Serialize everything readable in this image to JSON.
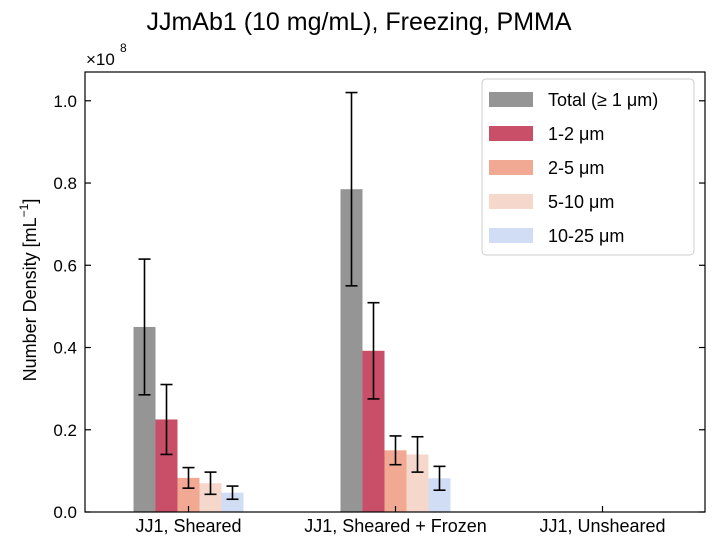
{
  "chart_data": {
    "type": "bar",
    "title": "JJmAb1 (10 mg/mL), Freezing, PMMA",
    "ylabel_main": "Number Density [mL",
    "ylabel_sup": "−1",
    "ylabel_close": "]",
    "xlabel": "",
    "y_multiplier": "×10",
    "y_multiplier_exp": "8",
    "ylim": [
      0,
      1.07
    ],
    "y_ticks": [
      0.0,
      0.2,
      0.4,
      0.6,
      0.8,
      1.0
    ],
    "y_tick_labels": [
      "0.0",
      "0.2",
      "0.4",
      "0.6",
      "0.8",
      "1.0"
    ],
    "categories": [
      "JJ1, Sheared",
      "JJ1, Sheared + Frozen",
      "JJ1, Unsheared"
    ],
    "series": [
      {
        "name": "Total (≥  1 μm)",
        "color": "#959595",
        "values": [
          0.45,
          0.785,
          0.001
        ],
        "err": [
          0.165,
          0.235,
          0.0
        ]
      },
      {
        "name": "1-2 μm",
        "color": "#c94e68",
        "values": [
          0.225,
          0.392,
          0.001
        ],
        "err": [
          0.085,
          0.117,
          0.0
        ]
      },
      {
        "name": "2-5 μm",
        "color": "#f2a994",
        "values": [
          0.083,
          0.15,
          0.001
        ],
        "err": [
          0.025,
          0.035,
          0.0
        ]
      },
      {
        "name": "5-10 μm",
        "color": "#f6d7cb",
        "values": [
          0.07,
          0.14,
          0.001
        ],
        "err": [
          0.027,
          0.043,
          0.0
        ]
      },
      {
        "name": "10-25 μm",
        "color": "#d1ddf5",
        "values": [
          0.047,
          0.082,
          0.001
        ],
        "err": [
          0.016,
          0.029,
          0.0
        ]
      }
    ],
    "legend_position": "top-right",
    "grid": false
  }
}
